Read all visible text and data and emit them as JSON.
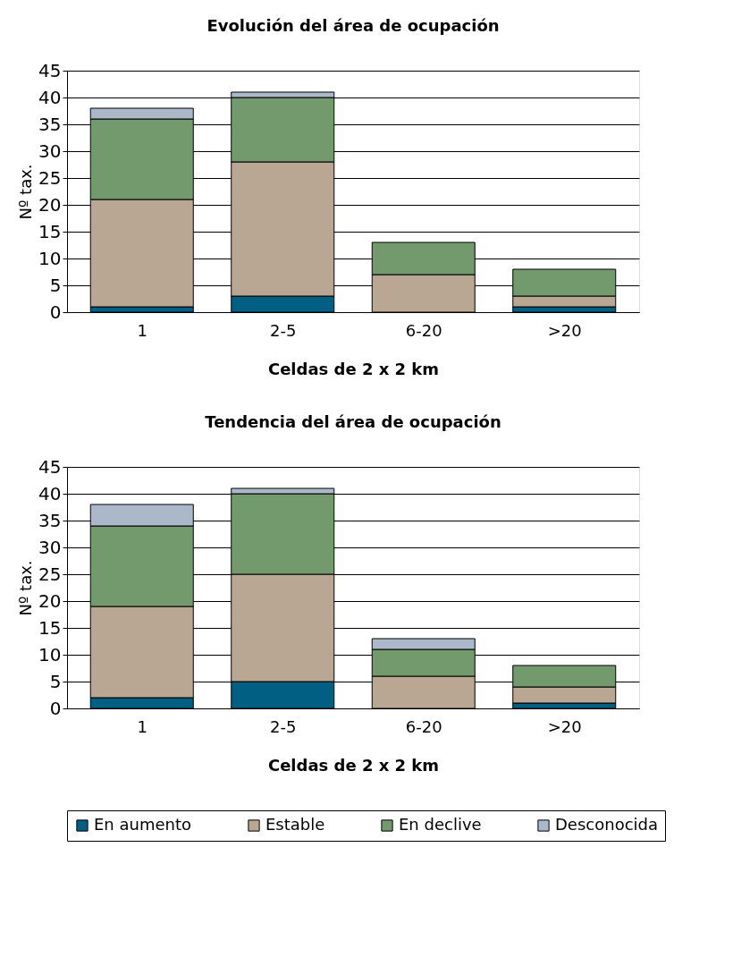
{
  "chart_data": [
    {
      "type": "bar",
      "title": "Evolución del área de ocupación",
      "xlabel": "Celdas de 2 x 2 km",
      "ylabel": "Nº tax.",
      "categories": [
        "1",
        "2-5",
        "6-20",
        ">20"
      ],
      "stacked": true,
      "ylim": [
        0,
        45
      ],
      "yticks": [
        0,
        5,
        10,
        15,
        20,
        25,
        30,
        35,
        40,
        45
      ],
      "grid": "y",
      "legend": "bottom",
      "series": [
        {
          "name": "En aumento",
          "color": "#005f83",
          "values": [
            1,
            3,
            null,
            1
          ]
        },
        {
          "name": "Estable",
          "color": "#b9a794",
          "values": [
            20,
            25,
            7,
            2
          ]
        },
        {
          "name": "En declive",
          "color": "#739a6c",
          "values": [
            15,
            12,
            6,
            5
          ]
        },
        {
          "name": "Desconocida",
          "color": "#abb8c9",
          "values": [
            2,
            1,
            null,
            null
          ]
        }
      ]
    },
    {
      "type": "bar",
      "title": "Tendencia del área de ocupación",
      "xlabel": "Celdas de 2 x 2 km",
      "ylabel": "Nº tax.",
      "categories": [
        "1",
        "2-5",
        "6-20",
        ">20"
      ],
      "stacked": true,
      "ylim": [
        0,
        45
      ],
      "yticks": [
        0,
        5,
        10,
        15,
        20,
        25,
        30,
        35,
        40,
        45
      ],
      "grid": "y",
      "legend": "bottom",
      "series": [
        {
          "name": "En aumento",
          "color": "#005f83",
          "values": [
            2,
            5,
            null,
            1
          ]
        },
        {
          "name": "Estable",
          "color": "#b9a794",
          "values": [
            17,
            20,
            6,
            3
          ]
        },
        {
          "name": "En declive",
          "color": "#739a6c",
          "values": [
            15,
            15,
            5,
            4
          ]
        },
        {
          "name": "Desconocida",
          "color": "#abb8c9",
          "values": [
            4,
            1,
            2,
            null
          ]
        }
      ]
    }
  ]
}
